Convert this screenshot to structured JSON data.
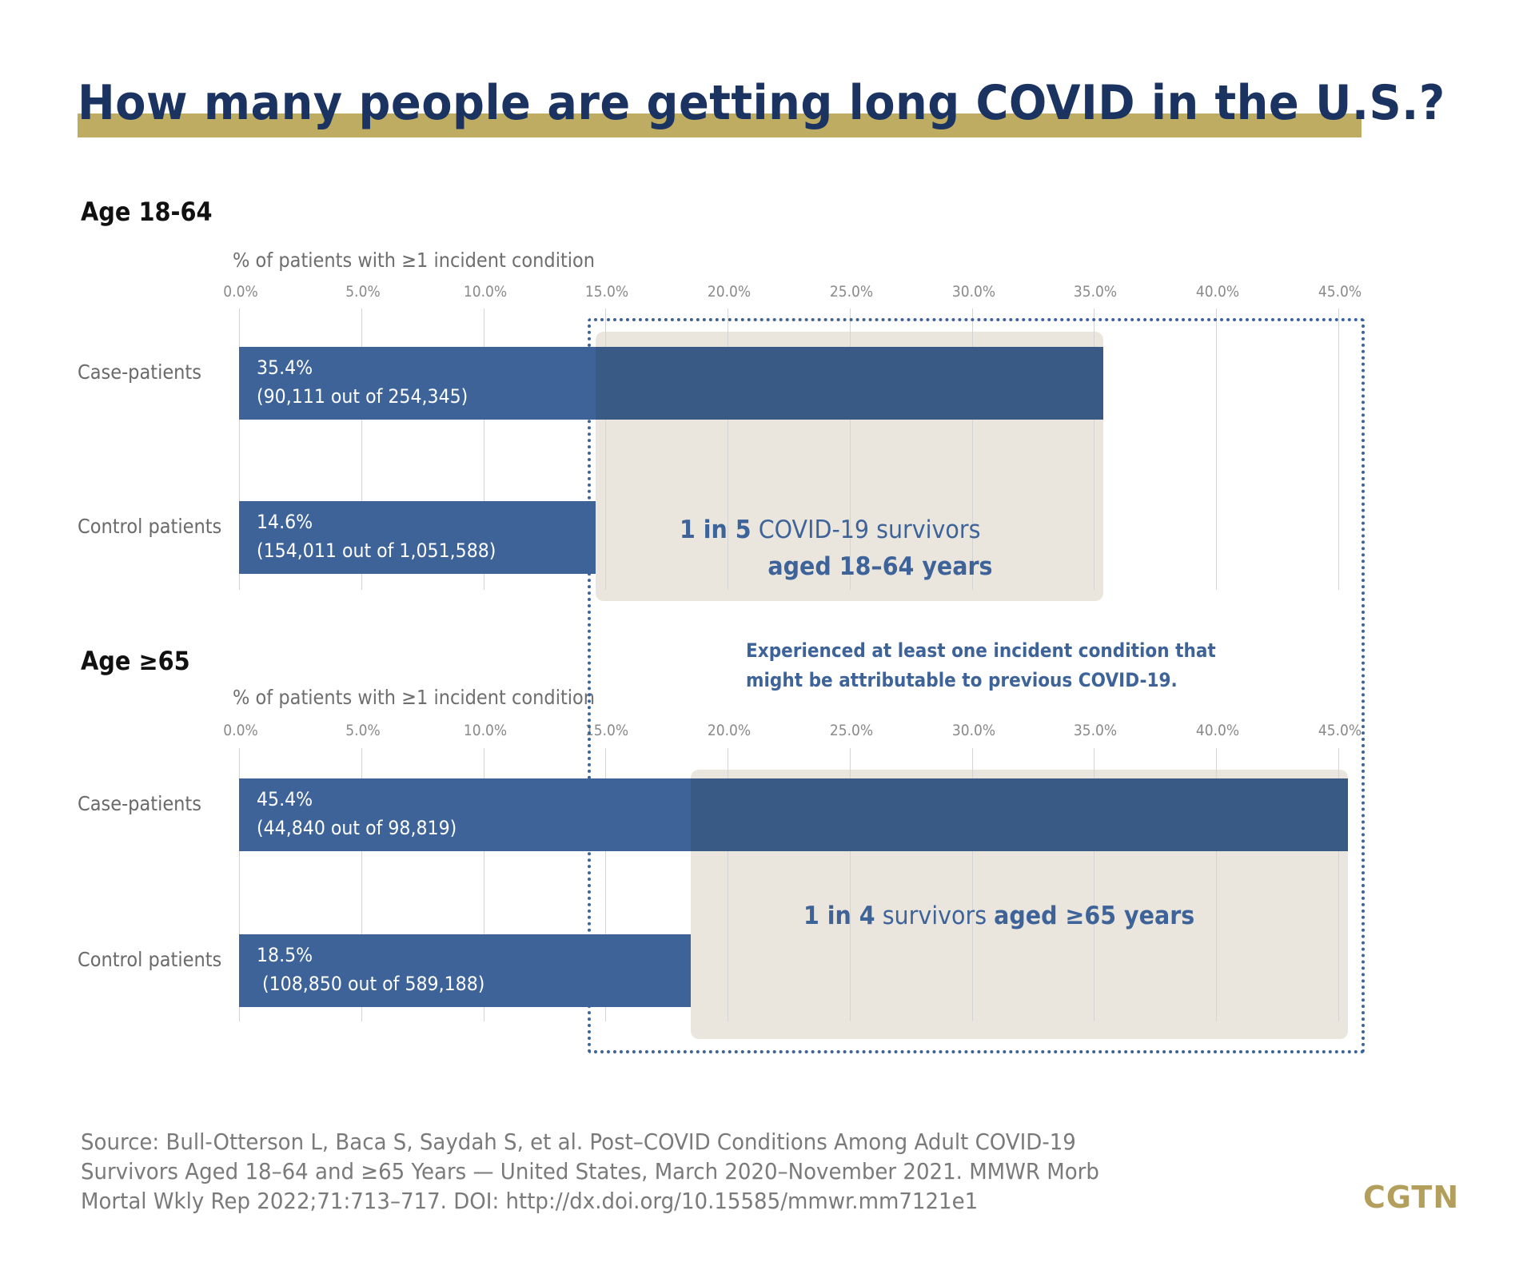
{
  "title": "How many people are getting long COVID in the U.S.?",
  "colors": {
    "title_text": "#1b3360",
    "title_band": "#bfac63",
    "bar": "#3d6399",
    "bar_overlay": "#385a84",
    "highlight_box": "#ebe6dd",
    "accent_text": "#3d6399",
    "logo": "#b39e5c"
  },
  "chart_data": [
    {
      "type": "bar",
      "orientation": "horizontal",
      "title": "Age 18-64",
      "xlabel": "% of patients with ≥1 incident condition",
      "ylabel": "",
      "xlim": [
        0,
        45
      ],
      "grid": true,
      "tick_labels": [
        "0.0%",
        "5.0%",
        "10.0%",
        "15.0%",
        "20.0%",
        "25.0%",
        "30.0%",
        "35.0%",
        "40.0%",
        "45.0%"
      ],
      "categories": [
        "Case-patients",
        "Control patients"
      ],
      "values": [
        35.4,
        14.6
      ],
      "value_labels": [
        "35.4%",
        "14.6%"
      ],
      "count_labels": [
        "(90,111 out of 254,345)",
        "(154,011 out of 1,051,588)"
      ],
      "highlight_range": [
        14.6,
        35.4
      ],
      "annotation": {
        "bold": "1 in 5",
        "normal": "COVID-19 survivors",
        "bold2": "aged 18–64 years"
      }
    },
    {
      "type": "bar",
      "orientation": "horizontal",
      "title": "Age ≥65",
      "xlabel": "% of patients with ≥1 incident condition",
      "ylabel": "",
      "xlim": [
        0,
        45
      ],
      "grid": true,
      "tick_labels": [
        "0.0%",
        "5.0%",
        "10.0%",
        "15.0%",
        "20.0%",
        "25.0%",
        "30.0%",
        "35.0%",
        "40.0%",
        "45.0%"
      ],
      "categories": [
        "Case-patients",
        "Control patients"
      ],
      "values": [
        45.4,
        18.5
      ],
      "value_labels": [
        "45.4%",
        "18.5%"
      ],
      "count_labels": [
        "(44,840 out of 98,819)",
        " (108,850 out of 589,188)"
      ],
      "highlight_range": [
        18.5,
        45.4
      ],
      "annotation": {
        "bold": "1 in 4",
        "normal": "survivors",
        "bold2": "aged ≥65 years"
      }
    }
  ],
  "note": [
    "Experienced at least one incident condition that",
    "might be attributable to previous COVID-19."
  ],
  "source": [
    "Source: Bull-Otterson L, Baca S, Saydah S, et al. Post–COVID Conditions Among Adult COVID-19",
    "Survivors Aged 18–64 and ≥65 Years — United States, March 2020–November 2021. MMWR Morb",
    "Mortal Wkly Rep 2022;71:713–717. DOI: http://dx.doi.org/10.15585/mmwr.mm7121e1"
  ],
  "logo": "CGTN"
}
